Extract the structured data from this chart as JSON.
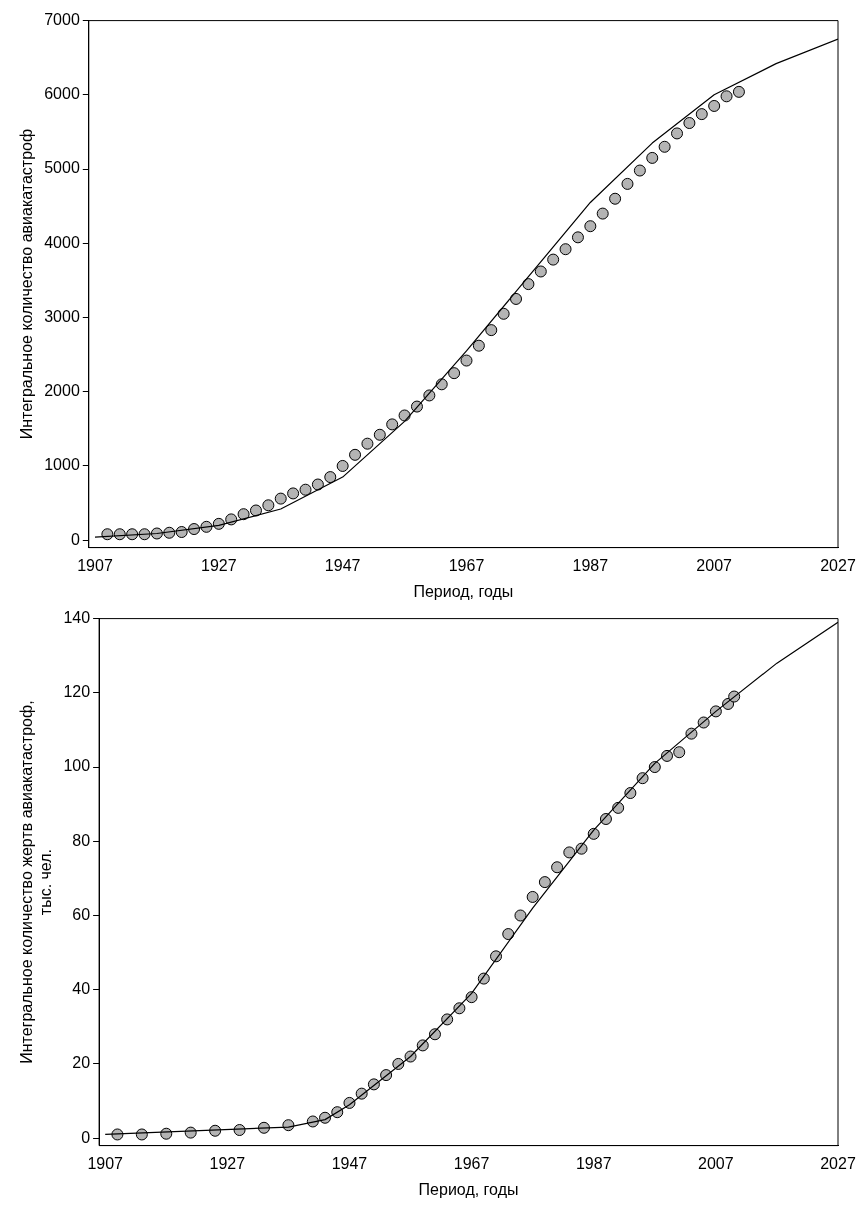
{
  "chart_data": [
    {
      "type": "scatter",
      "xlabel": "Период, годы",
      "ylabel": "Интегральное количество авиакатастроф",
      "xlim": [
        1906,
        2027
      ],
      "xticks": [
        1907,
        1927,
        1947,
        1967,
        1987,
        2007,
        2027
      ],
      "ylim": [
        -100,
        7000
      ],
      "yticks": [
        0,
        1000,
        2000,
        3000,
        4000,
        5000,
        6000,
        7000
      ],
      "grid": false,
      "marker": "circle",
      "series": [
        {
          "type": "scatter",
          "color": "#b4b4b4",
          "x": [
            1909,
            1911,
            1913,
            1915,
            1917,
            1919,
            1921,
            1923,
            1925,
            1927,
            1929,
            1931,
            1933,
            1935,
            1937,
            1939,
            1941,
            1943,
            1945,
            1947,
            1949,
            1951,
            1953,
            1955,
            1957,
            1959,
            1961,
            1963,
            1965,
            1967,
            1969,
            1971,
            1973,
            1975,
            1977,
            1979,
            1981,
            1983,
            1985,
            1987,
            1989,
            1991,
            1993,
            1995,
            1997,
            1999,
            2001,
            2003,
            2005,
            2007,
            2009,
            2011
          ],
          "values": [
            80,
            80,
            80,
            80,
            90,
            100,
            110,
            150,
            180,
            220,
            280,
            350,
            400,
            470,
            560,
            630,
            680,
            750,
            850,
            1000,
            1150,
            1300,
            1420,
            1560,
            1680,
            1800,
            1950,
            2100,
            2250,
            2420,
            2620,
            2830,
            3050,
            3250,
            3450,
            3620,
            3780,
            3920,
            4080,
            4230,
            4400,
            4600,
            4800,
            4980,
            5150,
            5300,
            5480,
            5620,
            5740,
            5850,
            5980,
            6040
          ]
        },
        {
          "type": "line",
          "marker": "none",
          "color": "#000000",
          "x": [
            1907,
            1917,
            1927,
            1937,
            1947,
            1957,
            1967,
            1977,
            1987,
            1997,
            2007,
            2017,
            2027
          ],
          "values": [
            40,
            90,
            200,
            420,
            850,
            1600,
            2550,
            3550,
            4550,
            5350,
            6000,
            6420,
            6750
          ]
        }
      ]
    },
    {
      "type": "scatter",
      "xlabel": "Период, годы",
      "ylabel": "Интегральное количество жертв авиакатастроф,\nтыс. чел.",
      "xlim": [
        1906,
        2027
      ],
      "xticks": [
        1907,
        1927,
        1947,
        1967,
        1987,
        2007,
        2027
      ],
      "ylim": [
        -2,
        140
      ],
      "yticks": [
        0,
        20,
        40,
        60,
        80,
        100,
        120,
        140
      ],
      "grid": false,
      "marker": "circle",
      "series": [
        {
          "type": "scatter",
          "color": "#b4b4b4",
          "x": [
            1909,
            1913,
            1917,
            1921,
            1925,
            1929,
            1933,
            1937,
            1941,
            1943,
            1945,
            1947,
            1949,
            1951,
            1953,
            1955,
            1957,
            1959,
            1961,
            1963,
            1965,
            1967,
            1969,
            1971,
            1973,
            1975,
            1977,
            1979,
            1981,
            1983,
            1985,
            1987,
            1989,
            1991,
            1993,
            1995,
            1997,
            1999,
            2001,
            2003,
            2005,
            2007,
            2009,
            2010
          ],
          "values": [
            1,
            1,
            1.2,
            1.5,
            2,
            2.2,
            2.8,
            3.5,
            4.5,
            5.5,
            7,
            9.5,
            12,
            14.5,
            17,
            20,
            22,
            25,
            28,
            32,
            35,
            38,
            43,
            49,
            55,
            60,
            65,
            69,
            73,
            77,
            78,
            82,
            86,
            89,
            93,
            97,
            100,
            103,
            104,
            109,
            112,
            115,
            117,
            119
          ]
        },
        {
          "type": "line",
          "marker": "none",
          "color": "#000000",
          "x": [
            1907,
            1937,
            1943,
            1947,
            1957,
            1967,
            1977,
            1987,
            1997,
            2007,
            2017,
            2027
          ],
          "values": [
            1,
            3,
            5,
            9,
            22,
            39,
            62,
            83,
            101,
            115,
            128,
            139
          ]
        }
      ]
    }
  ]
}
